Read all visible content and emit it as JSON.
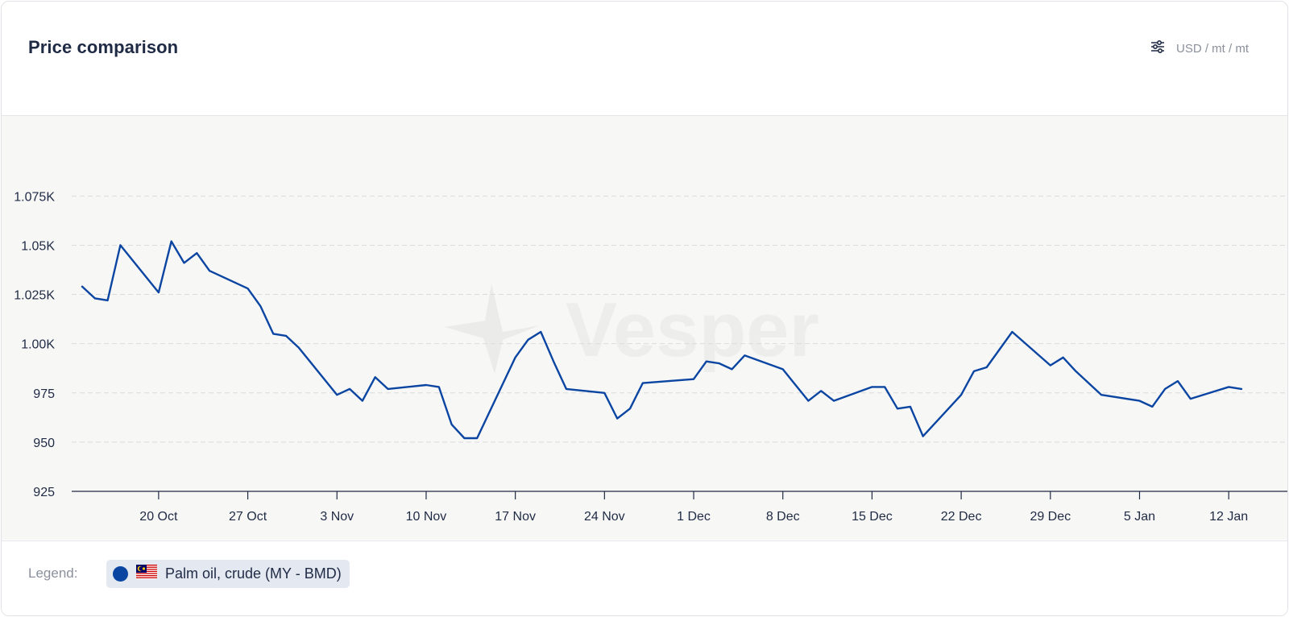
{
  "header": {
    "title": "Price comparison",
    "units_label": "USD / mt / mt",
    "units_icon": "sliders-icon"
  },
  "legend": {
    "label": "Legend:",
    "series_label": "Palm oil, crude (MY - BMD)",
    "series_color": "#0b45a2",
    "flag_icon": "malaysia-flag-icon"
  },
  "watermark": "Vesper",
  "colors": {
    "line": "#0b45a2",
    "plot_bg": "#f7f7f6",
    "grid": "#dcdcdc"
  },
  "chart_data": {
    "type": "line",
    "title": "Price comparison",
    "xlabel": "",
    "ylabel": "",
    "grid": true,
    "legend_position": "bottom",
    "ylim": [
      925,
      1087
    ],
    "y_ticks": [
      925,
      950,
      975,
      1000,
      1025,
      1050,
      1075
    ],
    "y_tick_labels": [
      "925",
      "950",
      "975",
      "1.00K",
      "1.025K",
      "1.05K",
      "1.075K"
    ],
    "x_ticks": [
      "2023-10-20",
      "2023-10-27",
      "2023-11-03",
      "2023-11-10",
      "2023-11-17",
      "2023-11-24",
      "2023-12-01",
      "2023-12-08",
      "2023-12-15",
      "2023-12-22",
      "2023-12-29",
      "2024-01-05",
      "2024-01-12"
    ],
    "x_tick_labels": [
      "20 Oct",
      "27 Oct",
      "3 Nov",
      "10 Nov",
      "17 Nov",
      "24 Nov",
      "1 Dec",
      "8 Dec",
      "15 Dec",
      "22 Dec",
      "29 Dec",
      "5 Jan",
      "12 Jan"
    ],
    "xlim": [
      "2023-10-14",
      "2024-01-13"
    ],
    "series": [
      {
        "name": "Palm oil, crude (MY - BMD)",
        "x": [
          "2023-10-14",
          "2023-10-15",
          "2023-10-16",
          "2023-10-17",
          "2023-10-20",
          "2023-10-21",
          "2023-10-22",
          "2023-10-23",
          "2023-10-24",
          "2023-10-27",
          "2023-10-28",
          "2023-10-29",
          "2023-10-30",
          "2023-10-31",
          "2023-11-03",
          "2023-11-04",
          "2023-11-05",
          "2023-11-06",
          "2023-11-07",
          "2023-11-10",
          "2023-11-11",
          "2023-11-12",
          "2023-11-13",
          "2023-11-14",
          "2023-11-17",
          "2023-11-18",
          "2023-11-19",
          "2023-11-20",
          "2023-11-21",
          "2023-11-24",
          "2023-11-25",
          "2023-11-26",
          "2023-11-27",
          "2023-12-01",
          "2023-12-02",
          "2023-12-03",
          "2023-12-04",
          "2023-12-05",
          "2023-12-08",
          "2023-12-09",
          "2023-12-10",
          "2023-12-11",
          "2023-12-12",
          "2023-12-15",
          "2023-12-16",
          "2023-12-17",
          "2023-12-18",
          "2023-12-19",
          "2023-12-22",
          "2023-12-23",
          "2023-12-24",
          "2023-12-26",
          "2023-12-29",
          "2023-12-30",
          "2023-12-31",
          "2024-01-02",
          "2024-01-05",
          "2024-01-06",
          "2024-01-07",
          "2024-01-08",
          "2024-01-09",
          "2024-01-12",
          "2024-01-13"
        ],
        "values": [
          1029,
          1023,
          1022,
          1050,
          1026,
          1052,
          1041,
          1046,
          1037,
          1028,
          1019,
          1005,
          1004,
          998,
          974,
          977,
          971,
          983,
          977,
          979,
          978,
          959,
          952,
          952,
          993,
          1002,
          1006,
          991,
          977,
          975,
          962,
          967,
          980,
          982,
          991,
          990,
          987,
          994,
          987,
          979,
          971,
          976,
          971,
          978,
          978,
          967,
          968,
          953,
          974,
          986,
          988,
          1006,
          989,
          993,
          986,
          974,
          971,
          968,
          977,
          981,
          972,
          978,
          977
        ]
      }
    ]
  }
}
